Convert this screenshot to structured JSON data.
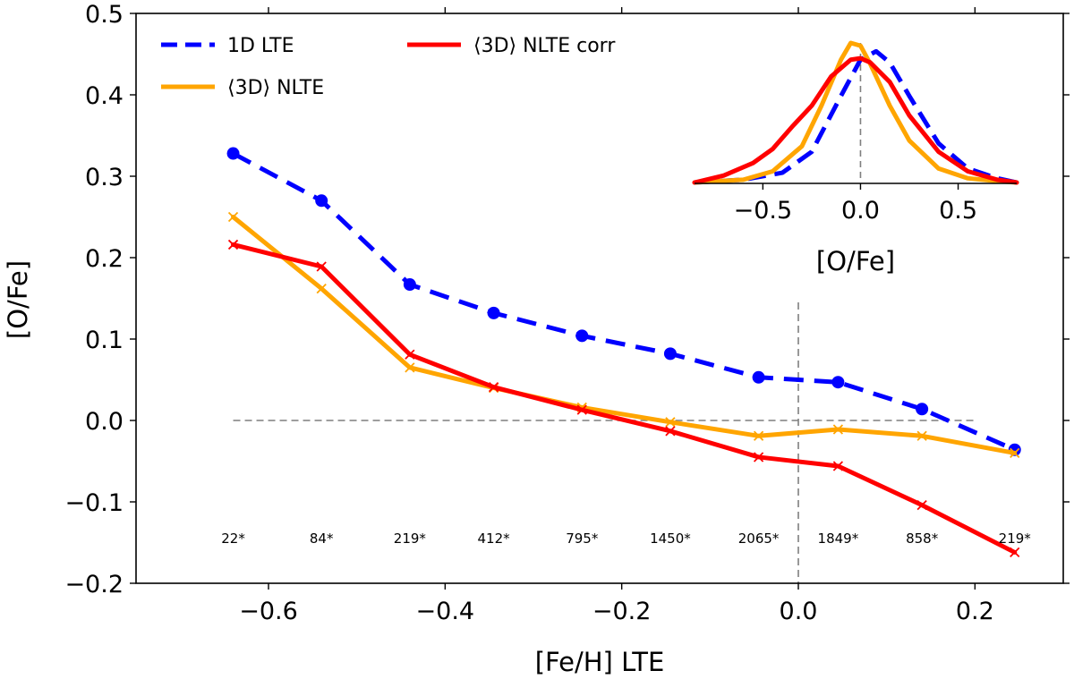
{
  "chart_data": {
    "type": "line",
    "xlabel": "[Fe/H] LTE",
    "ylabel": "[O/Fe]",
    "xlim": [
      -0.75,
      0.3
    ],
    "ylim": [
      -0.2,
      0.5
    ],
    "xticks": [
      -0.6,
      -0.4,
      -0.2,
      0.0,
      0.2
    ],
    "xtick_labels": [
      "−0.6",
      "−0.4",
      "−0.2",
      "0.0",
      "0.2"
    ],
    "yticks": [
      -0.2,
      -0.1,
      0.0,
      0.1,
      0.2,
      0.3,
      0.4,
      0.5
    ],
    "ytick_labels": [
      "−0.2",
      "−0.1",
      "0.0",
      "0.1",
      "0.2",
      "0.3",
      "0.4",
      "0.5"
    ],
    "x": [
      -0.64,
      -0.54,
      -0.44,
      -0.345,
      -0.245,
      -0.145,
      -0.045,
      0.045,
      0.14,
      0.245
    ],
    "series": [
      {
        "name": "1D LTE",
        "color": "#0000ff",
        "style": "dashed",
        "marker": "circle",
        "values": [
          0.328,
          0.27,
          0.167,
          0.132,
          0.104,
          0.082,
          0.053,
          0.047,
          0.014,
          -0.036
        ]
      },
      {
        "name": "⟨3D⟩ NLTE",
        "color": "#ffa500",
        "style": "solid",
        "marker": "x",
        "values": [
          0.25,
          0.162,
          0.065,
          0.04,
          0.016,
          -0.002,
          -0.019,
          -0.011,
          -0.019,
          -0.04
        ]
      },
      {
        "name": "⟨3D⟩ NLTE corr",
        "color": "#ff0000",
        "style": "solid",
        "marker": "x",
        "values": [
          0.216,
          0.189,
          0.081,
          0.041,
          0.013,
          -0.013,
          -0.045,
          -0.056,
          -0.104,
          -0.162
        ]
      }
    ],
    "counts": [
      "22*",
      "84*",
      "219*",
      "412*",
      "795*",
      "1450*",
      "2065*",
      "1849*",
      "858*",
      "219*"
    ],
    "reference_lines": {
      "y": 0.0,
      "x": 0.0
    },
    "legend_position": "top-left",
    "inset": {
      "type": "line",
      "xlabel": "[O/Fe]",
      "xlim": [
        -0.85,
        0.8
      ],
      "xticks": [
        -0.5,
        0.0,
        0.5
      ],
      "xtick_labels": [
        "−0.5",
        "0.0",
        "0.5"
      ],
      "reference_line_x": 0.0,
      "curves": [
        {
          "name": "1D LTE",
          "color": "#0000ff",
          "style": "dashed",
          "x": [
            -0.85,
            -0.6,
            -0.4,
            -0.25,
            -0.1,
            0.0,
            0.08,
            0.15,
            0.25,
            0.4,
            0.55,
            0.7,
            0.8
          ],
          "y": [
            0.0,
            0.02,
            0.07,
            0.22,
            0.62,
            0.88,
            0.94,
            0.86,
            0.62,
            0.28,
            0.1,
            0.03,
            0.0
          ]
        },
        {
          "name": "⟨3D⟩ NLTE",
          "color": "#ffa500",
          "style": "solid",
          "x": [
            -0.85,
            -0.6,
            -0.45,
            -0.3,
            -0.2,
            -0.1,
            -0.05,
            0.0,
            0.05,
            0.15,
            0.25,
            0.4,
            0.55,
            0.7,
            0.8
          ],
          "y": [
            0.0,
            0.02,
            0.08,
            0.26,
            0.55,
            0.88,
            1.0,
            0.98,
            0.85,
            0.55,
            0.3,
            0.1,
            0.03,
            0.01,
            0.0
          ]
        },
        {
          "name": "⟨3D⟩ NLTE corr",
          "color": "#ff0000",
          "style": "solid",
          "x": [
            -0.85,
            -0.7,
            -0.55,
            -0.45,
            -0.35,
            -0.25,
            -0.15,
            -0.05,
            0.0,
            0.05,
            0.15,
            0.25,
            0.4,
            0.55,
            0.7,
            0.8
          ],
          "y": [
            0.0,
            0.05,
            0.14,
            0.24,
            0.4,
            0.55,
            0.76,
            0.88,
            0.89,
            0.86,
            0.72,
            0.48,
            0.22,
            0.08,
            0.02,
            0.0
          ]
        }
      ]
    }
  }
}
